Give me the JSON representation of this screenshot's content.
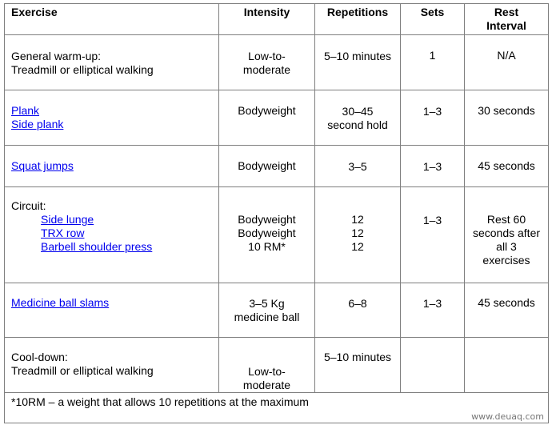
{
  "headers": {
    "exercise": "Exercise",
    "intensity": "Intensity",
    "repetitions": "Repetitions",
    "sets": "Sets",
    "rest_line1": "Rest",
    "rest_line2": "Interval"
  },
  "rows": {
    "warmup": {
      "exercise_line1": "General warm-up:",
      "exercise_line2": "Treadmill or elliptical walking",
      "intensity_line1": "Low-to-",
      "intensity_line2": "moderate",
      "repetitions": "5–10 minutes",
      "sets": "1",
      "rest": "N/A"
    },
    "plank": {
      "link1": "Plank",
      "link2": "Side plank",
      "intensity": "Bodyweight",
      "rep_line1": "30–45",
      "rep_line2": "second hold",
      "sets": "1–3",
      "rest": "30 seconds"
    },
    "squat": {
      "link": "Squat jumps",
      "intensity": "Bodyweight",
      "repetitions": "3–5",
      "sets": "1–3",
      "rest": "45 seconds"
    },
    "circuit": {
      "label": "Circuit:",
      "link1": "Side lunge",
      "link2": "TRX row",
      "link3": "Barbell shoulder press",
      "intensity1": "Bodyweight",
      "intensity2": "Bodyweight",
      "intensity3": "10 RM*",
      "rep1": "12",
      "rep2": "12",
      "rep3": "12",
      "sets": "1–3",
      "rest_line1": "Rest 60",
      "rest_line2": "seconds after",
      "rest_line3": "all 3",
      "rest_line4": "exercises"
    },
    "medicine": {
      "link": "Medicine ball slams",
      "intensity_line1": "3–5 Kg",
      "intensity_line2": "medicine ball",
      "repetitions": "6–8",
      "sets": "1–3",
      "rest": "45 seconds"
    },
    "cooldown": {
      "exercise_line1": "Cool-down:",
      "exercise_line2": "Treadmill or elliptical walking",
      "intensity_line1": "Low-to-",
      "intensity_line2": "moderate",
      "repetitions": "5–10 minutes"
    }
  },
  "footnote": "*10RM – a weight that allows 10 repetitions at the maximum",
  "watermark": "www.deuaq.com"
}
